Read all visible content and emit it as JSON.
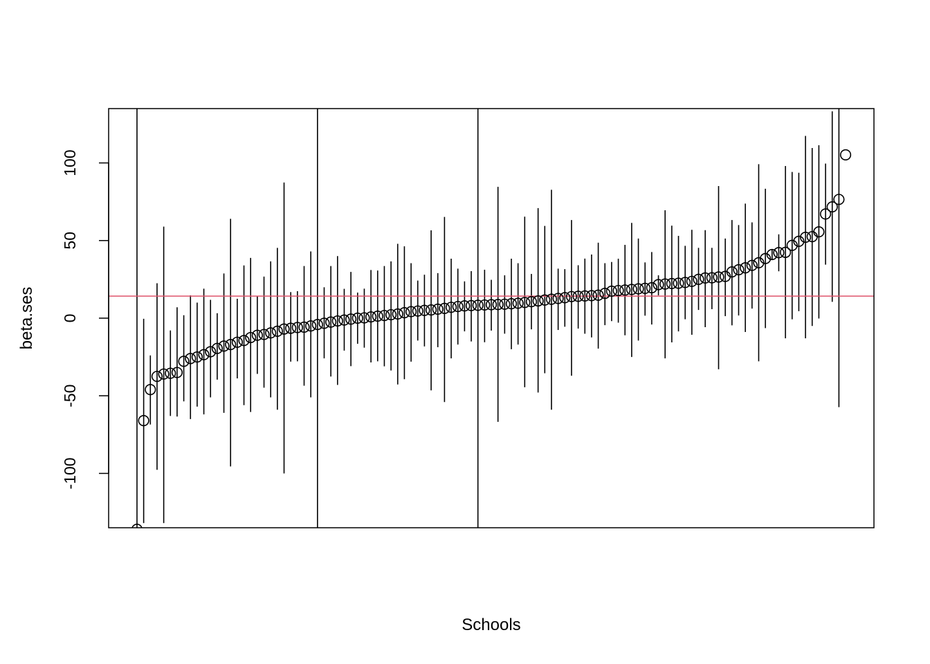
{
  "chart_data": {
    "type": "scatter",
    "title": "",
    "xlabel": "Schools",
    "ylabel": "beta.ses",
    "xaxis_ticks_shown": false,
    "ylim": [
      -135,
      135
    ],
    "yticks": [
      -100,
      -50,
      0,
      50,
      100
    ],
    "grid": false,
    "legend": "none",
    "colors": {
      "points": "#000000",
      "intervals": "#000000",
      "reference_line": "#DF536B"
    },
    "reference_line": {
      "orientation": "horizontal",
      "y": 14.2
    },
    "x": [
      1,
      2,
      3,
      4,
      5,
      6,
      7,
      8,
      9,
      10,
      11,
      12,
      13,
      14,
      15,
      16,
      17,
      18,
      19,
      20,
      21,
      22,
      23,
      24,
      25,
      26,
      27,
      28,
      29,
      30,
      31,
      32,
      33,
      34,
      35,
      36,
      37,
      38,
      39,
      40,
      41,
      42,
      43,
      44,
      45,
      46,
      47,
      48,
      49,
      50,
      51,
      52,
      53,
      54,
      55,
      56,
      57,
      58,
      59,
      60,
      61,
      62,
      63,
      64,
      65,
      66,
      67,
      68,
      69,
      70,
      71,
      72,
      73,
      74,
      75,
      76,
      77,
      78,
      79,
      80,
      81,
      82,
      83,
      84,
      85,
      86,
      87,
      88,
      89,
      90,
      91,
      92,
      93,
      94,
      95,
      96,
      97,
      98,
      99,
      100,
      101,
      102,
      103,
      104,
      105,
      106,
      107
    ],
    "y": [
      -136,
      -66,
      -46,
      -37.5,
      -36,
      -35.5,
      -35,
      -27.8,
      -26,
      -25,
      -23.5,
      -21.6,
      -19.5,
      -18,
      -17,
      -15.5,
      -14.4,
      -12.5,
      -11,
      -10.5,
      -9.5,
      -8.4,
      -7,
      -6.5,
      -6,
      -5.8,
      -5,
      -4.1,
      -3.3,
      -2.5,
      -1.8,
      -1.2,
      -0.6,
      0,
      0.2,
      0.8,
      1.3,
      1.7,
      2.2,
      2.7,
      3.5,
      4.2,
      4.6,
      5,
      5.3,
      5.8,
      6.3,
      7,
      7.5,
      7.9,
      8.1,
      8.3,
      8.5,
      8.7,
      8.8,
      9,
      9.3,
      9.6,
      10.1,
      10.6,
      11.1,
      11.7,
      12.2,
      12.7,
      13.2,
      13.9,
      14.1,
      14.3,
      14.5,
      14.8,
      16,
      17.4,
      17.8,
      18.1,
      18.5,
      18.9,
      19.2,
      19.6,
      21.6,
      22,
      22.3,
      22.5,
      23,
      23.7,
      25,
      25.9,
      26,
      26.5,
      26.9,
      29.8,
      31.2,
      32.4,
      34,
      35.7,
      38.4,
      41,
      42.2,
      42.4,
      46.9,
      49.5,
      52.1,
      52.5,
      55.6,
      67.1,
      71.7,
      76.5,
      105.2
    ],
    "lower": [
      -300,
      -132,
      -68.5,
      -97.7,
      -132,
      -63,
      -63.4,
      -53.6,
      -65,
      -57,
      -62,
      -51,
      -39.6,
      -61,
      -95.5,
      -38.8,
      -56,
      -60.4,
      -35.9,
      -44.8,
      -51,
      -59,
      -100,
      -28,
      -27.8,
      -43.5,
      -51,
      -300,
      -25.9,
      -37.6,
      -43,
      -20.9,
      -30.9,
      -16.5,
      -19,
      -28.5,
      -27.8,
      -31,
      -33.7,
      -42.7,
      -39.3,
      -28,
      -14.4,
      -18.2,
      -46.5,
      -18.7,
      -54,
      -25.9,
      -17,
      -8.5,
      -15,
      -300,
      -15.5,
      -8,
      -66.8,
      -10,
      -20,
      -17,
      -44.5,
      -7.2,
      -47.9,
      -35.5,
      -59,
      -7.6,
      -5.5,
      -37.1,
      -6.7,
      -10,
      -12.4,
      -19.6,
      -4.5,
      -1.9,
      -2.9,
      -11,
      -25,
      -14.4,
      1.6,
      -4.1,
      14.7,
      -25.9,
      -15.6,
      -8.5,
      -0.7,
      -10.7,
      5.3,
      -5.8,
      5.8,
      -32.9,
      1.3,
      -4.6,
      1.7,
      -8.9,
      6.2,
      -27.8,
      -6.4,
      38,
      30.2,
      -13,
      -0.7,
      4.5,
      -13,
      -5,
      -0.2,
      34.5,
      10.5,
      -57.3,
      null
    ],
    "upper": [
      300,
      -0.4,
      -24,
      22.5,
      59,
      -7.9,
      7,
      1.9,
      14.7,
      10,
      19,
      11.8,
      3.2,
      28.8,
      64,
      12.5,
      34,
      38.8,
      14.2,
      26.8,
      36.6,
      45.3,
      87.4,
      16.8,
      17.4,
      33.6,
      43,
      300,
      19.9,
      33.6,
      40,
      18.9,
      29.8,
      16.5,
      19,
      31,
      30.7,
      33.6,
      36.6,
      47.9,
      46.3,
      35.4,
      24.2,
      28,
      56.6,
      29,
      65.2,
      38.3,
      31.9,
      23.7,
      30.3,
      300,
      31.2,
      24.7,
      84.6,
      27.6,
      38.3,
      35.4,
      65.4,
      28.5,
      70.9,
      59.4,
      82.7,
      31.9,
      31.6,
      63.2,
      34.1,
      38.4,
      41,
      48.6,
      35.4,
      36.2,
      38.3,
      47.2,
      61.4,
      51.3,
      35.9,
      42.6,
      27.6,
      69.5,
      59.6,
      53,
      46.6,
      56.9,
      45.3,
      56.7,
      45.3,
      85.1,
      51.3,
      63.2,
      60,
      73.8,
      61.7,
      99.2,
      83.4,
      44,
      54,
      98,
      94.2,
      93.7,
      117.4,
      109.6,
      111.4,
      99.6,
      133.2,
      140,
      null
    ]
  }
}
